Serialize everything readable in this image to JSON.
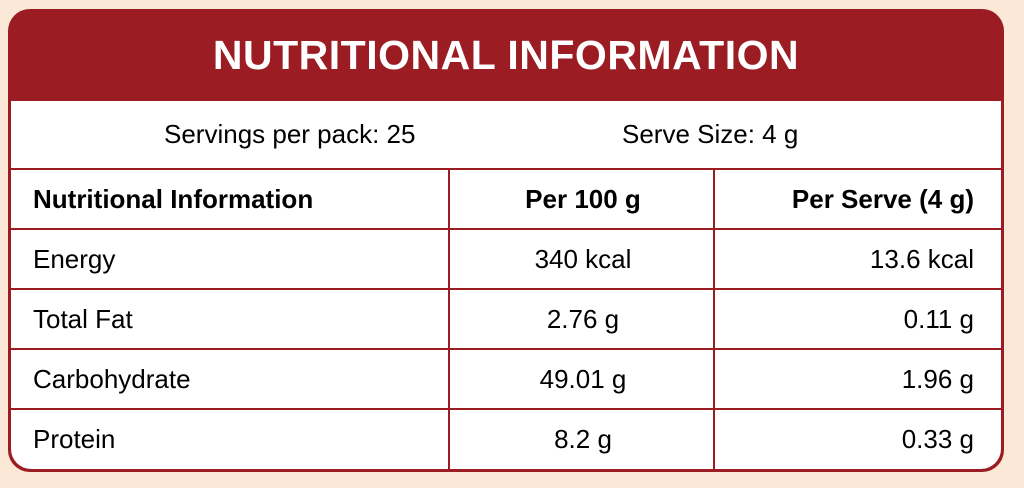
{
  "title": "NUTRITIONAL INFORMATION",
  "servings": {
    "per_pack": "Servings per pack: 25",
    "serve_size": "Serve Size: 4 g"
  },
  "table": {
    "headers": [
      "Nutritional Information",
      "Per 100 g",
      "Per Serve (4 g)"
    ],
    "rows": [
      [
        "Energy",
        "340 kcal",
        "13.6 kcal"
      ],
      [
        "Total Fat",
        "2.76 g",
        "0.11 g"
      ],
      [
        "Carbohydrate",
        "49.01 g",
        "1.96 g"
      ],
      [
        "Protein",
        "8.2 g",
        "0.33 g"
      ]
    ]
  },
  "colors": {
    "accent": "#9b1c22",
    "background": "#fbe8d6",
    "panel": "#ffffff"
  }
}
